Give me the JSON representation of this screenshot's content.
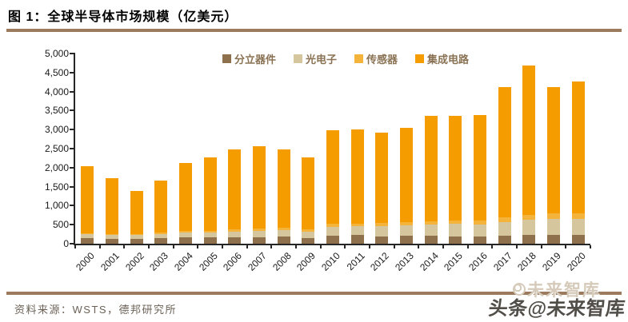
{
  "header": {
    "title": "图 1：全球半导体市场规模（亿美元）"
  },
  "footer": {
    "source": "资料来源：WSTS，德邦研究所"
  },
  "watermark": {
    "main": "头条@未来智库",
    "ghost": "未来智库"
  },
  "colors": {
    "rule": "#9B7A5E",
    "axis": "#262626",
    "legend_text": "#8A7254",
    "source_text": "#6B6156",
    "discrete": "#8E714C",
    "opto": "#D6C69E",
    "sensor": "#F4B43C",
    "ic": "#F59C00"
  },
  "chart_data": {
    "type": "bar",
    "stacked": true,
    "title": "全球半导体市场规模（亿美元）",
    "xlabel": "",
    "ylabel": "",
    "grid": false,
    "legend_position": "top",
    "ylim": [
      0,
      5000
    ],
    "ytick_step": 500,
    "ytick_labels": [
      "0",
      "500",
      "1,000",
      "1,500",
      "2,000",
      "2,500",
      "3,000",
      "3,500",
      "4,000",
      "4,500",
      "5,000"
    ],
    "categories": [
      "2000",
      "2001",
      "2002",
      "2003",
      "2004",
      "2005",
      "2006",
      "2007",
      "2008",
      "2009",
      "2010",
      "2011",
      "2012",
      "2013",
      "2014",
      "2015",
      "2016",
      "2017",
      "2018",
      "2019",
      "2020"
    ],
    "series": [
      {
        "name": "分立器件",
        "color": "#8E714C",
        "values": [
          150,
          130,
          125,
          139,
          158,
          160,
          167,
          178,
          181,
          156,
          218,
          226,
          197,
          201,
          203,
          186,
          194,
          216,
          241,
          239,
          238
        ]
      },
      {
        "name": "光电子",
        "color": "#D6C69E",
        "values": [
          100,
          105,
          105,
          115,
          131,
          140,
          155,
          162,
          169,
          163,
          232,
          231,
          264,
          279,
          299,
          333,
          320,
          348,
          380,
          416,
          404
        ]
      },
      {
        "name": "传感器",
        "color": "#F4B43C",
        "values": [
          25,
          25,
          25,
          30,
          40,
          45,
          50,
          56,
          60,
          50,
          70,
          78,
          80,
          80,
          85,
          88,
          105,
          125,
          133,
          135,
          150
        ]
      },
      {
        "name": "集成电路",
        "color": "#F59C00",
        "values": [
          1769,
          1460,
          1135,
          1380,
          1801,
          1930,
          2105,
          2160,
          2076,
          1894,
          2463,
          2460,
          2375,
          2496,
          2771,
          2745,
          2770,
          3433,
          3934,
          3333,
          3468
        ]
      }
    ],
    "totals": [
      2044,
      1720,
      1390,
      1664,
      2130,
      2275,
      2477,
      2556,
      2486,
      2263,
      2983,
      2995,
      2916,
      3056,
      3358,
      3352,
      3389,
      4122,
      4688,
      4123,
      4260
    ]
  }
}
